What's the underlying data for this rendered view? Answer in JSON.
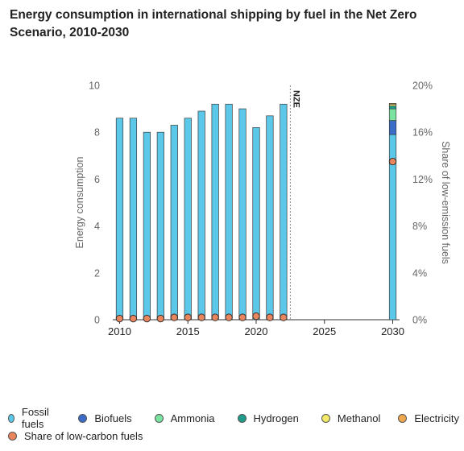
{
  "title": "Energy consumption in international shipping by fuel in the Net Zero Scenario, 2010-2030",
  "colors": {
    "fossil": "#5bc8ea",
    "biofuels": "#3b6cc7",
    "ammonia": "#7be3a0",
    "hydrogen": "#1f9b8a",
    "methanol": "#f3ea68",
    "electricity": "#f0a84e",
    "share_marker": "#e8855c"
  },
  "legend": [
    {
      "label": "Fossil fuels",
      "color": "#5bc8ea"
    },
    {
      "label": "Biofuels",
      "color": "#3b6cc7"
    },
    {
      "label": "Ammonia",
      "color": "#7be3a0"
    },
    {
      "label": "Hydrogen",
      "color": "#1f9b8a"
    },
    {
      "label": "Methanol",
      "color": "#f3ea68"
    },
    {
      "label": "Electricity",
      "color": "#f0a84e"
    },
    {
      "label": "Share of low-carbon fuels",
      "color": "#e8855c"
    }
  ],
  "chart_data": {
    "type": "bar",
    "title": "Energy consumption in international shipping by fuel in the Net Zero Scenario, 2010-2030",
    "ylabel": "Energy consumption",
    "y2label": "Share of low-emission fuels",
    "ylim": [
      0,
      10
    ],
    "y2lim": [
      0,
      0.2
    ],
    "yticks": [
      "0",
      "2",
      "4",
      "6",
      "8",
      "10"
    ],
    "y2ticks": [
      "0%",
      "4%",
      "8%",
      "12%",
      "16%",
      "20%"
    ],
    "xlim": [
      2009.5,
      2030.5
    ],
    "xticks": [
      "2010",
      "2015",
      "2020",
      "2025",
      "2030"
    ],
    "annotation": "NZE",
    "annotation_x": 2022.5,
    "stacked": true,
    "x": [
      2010,
      2011,
      2012,
      2013,
      2014,
      2015,
      2016,
      2017,
      2018,
      2019,
      2020,
      2021,
      2022,
      2030
    ],
    "series": [
      {
        "name": "Fossil fuels",
        "values": [
          8.6,
          8.6,
          8.0,
          8.0,
          8.3,
          8.6,
          8.9,
          9.2,
          9.2,
          9.0,
          8.2,
          8.7,
          9.2,
          7.9
        ]
      },
      {
        "name": "Biofuels",
        "values": [
          0,
          0,
          0,
          0,
          0,
          0,
          0,
          0,
          0,
          0,
          0,
          0,
          0,
          0.6
        ]
      },
      {
        "name": "Ammonia",
        "values": [
          0,
          0,
          0,
          0,
          0,
          0,
          0,
          0,
          0,
          0,
          0,
          0,
          0,
          0.5
        ]
      },
      {
        "name": "Hydrogen",
        "values": [
          0,
          0,
          0,
          0,
          0,
          0,
          0,
          0,
          0,
          0,
          0,
          0,
          0,
          0.12
        ]
      },
      {
        "name": "Methanol",
        "values": [
          0,
          0,
          0,
          0,
          0,
          0,
          0,
          0,
          0,
          0,
          0,
          0,
          0,
          0.08
        ]
      },
      {
        "name": "Electricity",
        "values": [
          0,
          0,
          0,
          0,
          0,
          0,
          0,
          0,
          0,
          0,
          0,
          0,
          0,
          0.03
        ]
      }
    ],
    "share": {
      "name": "Share of low-carbon fuels",
      "values": [
        0.001,
        0.001,
        0.001,
        0.001,
        0.002,
        0.002,
        0.002,
        0.002,
        0.002,
        0.002,
        0.003,
        0.002,
        0.002,
        0.135
      ]
    },
    "grid": false,
    "legend_position": "bottom"
  }
}
